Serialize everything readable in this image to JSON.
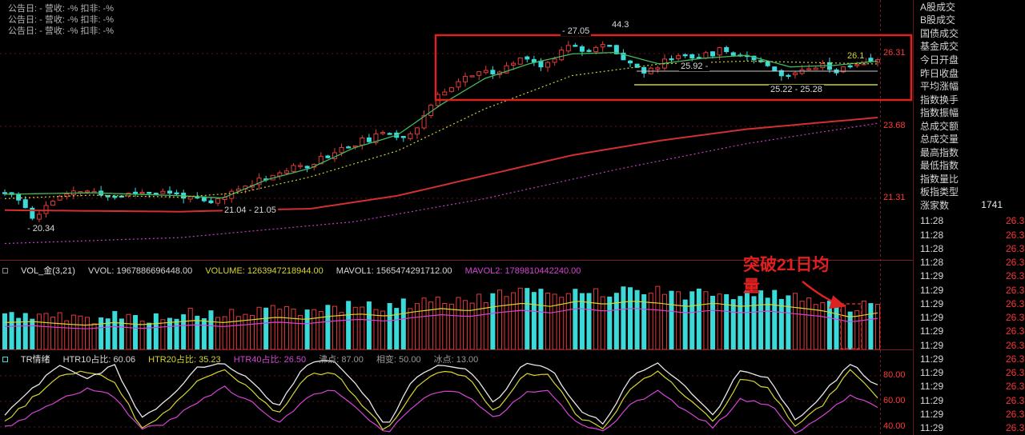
{
  "info_lines": [
    "公告日: -  营收: -%  扣非: -%",
    "公告日: -  营收: -%  扣非: -%",
    "公告日: -  营收: -%  扣非: -%"
  ],
  "main_chart": {
    "y_axis_labels": [
      "26.31",
      "23.68",
      "21.31"
    ],
    "annotations": {
      "peak": "- 27.05",
      "measure": "44.3",
      "level_2592": "25.92 -",
      "range_2522": "25.22 - 25.28",
      "range_2104": "21.04 - 21.05",
      "low": "- 20.34",
      "last": "26.1"
    }
  },
  "volume_panel": {
    "indicator": "VOL_金(3,21)",
    "vvol": "VVOL: 1967886696448.00",
    "volume": "VOLUME: 1263947218944.00",
    "mavol1": "MAVOL1: 1565474291712.00",
    "mavol2": "MAVOL2: 1789810442240.00",
    "breakout_note": "突破21日均量"
  },
  "tr_panel": {
    "indicator": "TR情绪",
    "htr10": "HTR10占比: 60.06",
    "htr20": "HTR20占比: 35.23",
    "htr40": "HTR40占比: 26.50",
    "boil": "沸点: 87.00",
    "phase": "相变: 50.00",
    "ice": "冰点: 13.00",
    "y_axis_labels": [
      "80.00",
      "60.00",
      "40.00"
    ]
  },
  "sidebar": {
    "fields": [
      "A股成交",
      "B股成交",
      "国债成交",
      "基金成交",
      "今日开盘",
      "昨日收盘",
      "平均涨幅",
      "指数换手",
      "指数振幅",
      "总成交额",
      "总成交量",
      "最高指数",
      "最低指数",
      "指数量比",
      "板指类型"
    ],
    "rising_label": "涨家数",
    "rising_value": "1741",
    "ticks": [
      {
        "time": "11:28",
        "price": "26.3"
      },
      {
        "time": "11:28",
        "price": "26.3"
      },
      {
        "time": "11:28",
        "price": "26.3"
      },
      {
        "time": "11:28",
        "price": "26.3"
      },
      {
        "time": "11:29",
        "price": "26.3"
      },
      {
        "time": "11:29",
        "price": "26.3"
      },
      {
        "time": "11:29",
        "price": "26.3"
      },
      {
        "time": "11:29",
        "price": "26.3"
      },
      {
        "time": "11:29",
        "price": "26.3"
      },
      {
        "time": "11:29",
        "price": "26.3"
      },
      {
        "time": "11:29",
        "price": "26.3"
      },
      {
        "time": "11:29",
        "price": "26.3"
      },
      {
        "time": "11:29",
        "price": "26.3"
      },
      {
        "time": "11:29",
        "price": "26.3"
      },
      {
        "time": "11:29",
        "price": "26.3"
      },
      {
        "time": "11:29",
        "price": "26.3"
      }
    ]
  },
  "colors": {
    "up": "#e23b3b",
    "down": "#3cd9d9",
    "ma_green": "#43b95c",
    "ma_yellow": "#cfcf2f",
    "ma_red": "#d03030",
    "ma_magenta": "#c040c0",
    "osc_white": "#e8e8e8",
    "osc_yellow": "#d6d62e",
    "osc_magenta": "#d545d5",
    "axis_red": "#ff3b3b",
    "annotation_red": "#e02020"
  },
  "chart_data": {
    "type": "candlestick+volume+oscillator",
    "price_axis": {
      "labels": [
        26.31,
        23.68,
        21.31
      ],
      "visible_low": 20.34,
      "visible_high": 27.05
    },
    "candles": {
      "count": 128,
      "anchors": [
        [
          0,
          21.5
        ],
        [
          0.02,
          21.15
        ],
        [
          0.035,
          20.55
        ],
        [
          0.05,
          21.2
        ],
        [
          0.09,
          21.6
        ],
        [
          0.12,
          21.35
        ],
        [
          0.16,
          21.55
        ],
        [
          0.2,
          21.45
        ],
        [
          0.235,
          21.1
        ],
        [
          0.26,
          21.5
        ],
        [
          0.29,
          21.95
        ],
        [
          0.32,
          22.25
        ],
        [
          0.35,
          22.5
        ],
        [
          0.38,
          22.95
        ],
        [
          0.41,
          23.3
        ],
        [
          0.44,
          23.55
        ],
        [
          0.46,
          23.45
        ],
        [
          0.475,
          23.9
        ],
        [
          0.49,
          24.6
        ],
        [
          0.505,
          25.1
        ],
        [
          0.525,
          25.45
        ],
        [
          0.545,
          25.7
        ],
        [
          0.56,
          25.55
        ],
        [
          0.58,
          25.95
        ],
        [
          0.6,
          26.25
        ],
        [
          0.615,
          25.8
        ],
        [
          0.635,
          26.35
        ],
        [
          0.65,
          26.75
        ],
        [
          0.665,
          26.4
        ],
        [
          0.69,
          26.6
        ],
        [
          0.715,
          26.05
        ],
        [
          0.735,
          25.6
        ],
        [
          0.755,
          26.05
        ],
        [
          0.775,
          26.3
        ],
        [
          0.8,
          26.2
        ],
        [
          0.82,
          26.45
        ],
        [
          0.84,
          26.3
        ],
        [
          0.86,
          26.15
        ],
        [
          0.875,
          25.95
        ],
        [
          0.895,
          25.45
        ],
        [
          0.915,
          25.85
        ],
        [
          0.935,
          25.95
        ],
        [
          0.955,
          25.7
        ],
        [
          0.975,
          26.0
        ],
        [
          1,
          26.15
        ]
      ]
    },
    "ma": {
      "green": [
        [
          0,
          21.45
        ],
        [
          0.1,
          21.5
        ],
        [
          0.2,
          21.4
        ],
        [
          0.25,
          21.32
        ],
        [
          0.3,
          21.95
        ],
        [
          0.35,
          22.35
        ],
        [
          0.4,
          23.05
        ],
        [
          0.45,
          23.5
        ],
        [
          0.5,
          24.55
        ],
        [
          0.55,
          25.45
        ],
        [
          0.6,
          25.95
        ],
        [
          0.65,
          26.3
        ],
        [
          0.7,
          26.35
        ],
        [
          0.75,
          25.95
        ],
        [
          0.8,
          26.15
        ],
        [
          0.85,
          26.25
        ],
        [
          0.9,
          25.85
        ],
        [
          0.95,
          25.9
        ],
        [
          1,
          26.05
        ]
      ],
      "yellow": [
        [
          0,
          21.3
        ],
        [
          0.1,
          21.42
        ],
        [
          0.2,
          21.35
        ],
        [
          0.27,
          21.5
        ],
        [
          0.35,
          22.05
        ],
        [
          0.45,
          22.95
        ],
        [
          0.55,
          24.4
        ],
        [
          0.65,
          25.55
        ],
        [
          0.75,
          25.95
        ],
        [
          0.85,
          26.05
        ],
        [
          1,
          25.95
        ]
      ],
      "red": [
        [
          0,
          20.9
        ],
        [
          0.2,
          20.85
        ],
        [
          0.35,
          20.95
        ],
        [
          0.45,
          21.4
        ],
        [
          0.55,
          22.1
        ],
        [
          0.65,
          22.8
        ],
        [
          0.75,
          23.3
        ],
        [
          0.85,
          23.7
        ],
        [
          1,
          24.1
        ]
      ],
      "magenta": [
        [
          0,
          19.75
        ],
        [
          0.2,
          19.95
        ],
        [
          0.4,
          20.5
        ],
        [
          0.55,
          21.3
        ],
        [
          0.7,
          22.3
        ],
        [
          0.85,
          23.2
        ],
        [
          1,
          23.9
        ]
      ]
    },
    "volume": {
      "anchors": [
        0.5,
        0.52,
        0.48,
        0.45,
        0.5,
        0.46,
        0.5,
        0.54,
        0.5,
        0.55,
        0.6,
        0.56,
        0.62,
        0.66,
        0.62,
        0.7,
        0.76,
        0.72,
        0.8,
        0.86,
        0.8,
        0.9,
        0.84,
        0.9,
        0.86,
        0.8,
        0.86,
        0.8,
        0.84,
        0.78,
        0.72,
        0.6,
        0.68
      ]
    },
    "oscillator": {
      "axis": [
        80,
        60,
        40
      ],
      "white": [
        50,
        70,
        88,
        76,
        90,
        46,
        62,
        86,
        90,
        78,
        55,
        88,
        92,
        70,
        40,
        78,
        90,
        84,
        58,
        90,
        86,
        55,
        42,
        82,
        90,
        70,
        50,
        86,
        78,
        46,
        66,
        90,
        72
      ],
      "yellow": [
        44,
        62,
        80,
        84,
        76,
        40,
        52,
        76,
        86,
        70,
        48,
        80,
        84,
        60,
        36,
        70,
        84,
        78,
        50,
        82,
        80,
        48,
        38,
        72,
        84,
        62,
        44,
        78,
        70,
        40,
        58,
        84,
        64
      ],
      "magenta": [
        40,
        50,
        62,
        70,
        64,
        38,
        44,
        58,
        72,
        60,
        42,
        62,
        70,
        52,
        34,
        56,
        70,
        64,
        46,
        66,
        68,
        42,
        35,
        58,
        68,
        52,
        40,
        62,
        58,
        36,
        48,
        66,
        55
      ]
    }
  }
}
